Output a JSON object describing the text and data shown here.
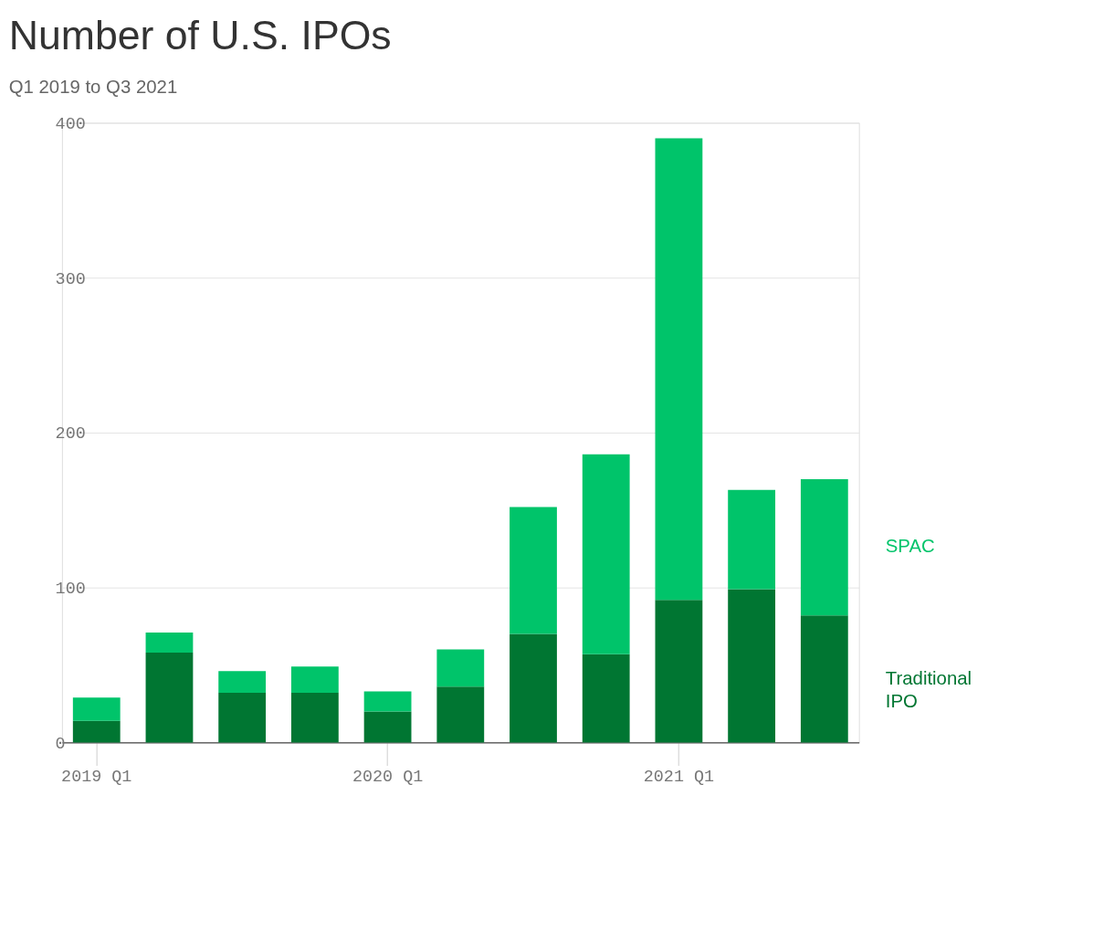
{
  "chart_data": {
    "type": "bar",
    "title": "Number of U.S. IPOs",
    "subtitle": "Q1 2019 to Q3 2021",
    "categories": [
      "2019 Q1",
      null,
      null,
      null,
      "2020 Q1",
      null,
      null,
      null,
      "2021 Q1",
      null,
      null
    ],
    "stacked": true,
    "series": [
      {
        "name": "Traditional IPO",
        "color": "#007632",
        "values": [
          14,
          58,
          32,
          32,
          20,
          36,
          70,
          57,
          92,
          99,
          82
        ]
      },
      {
        "name": "SPAC",
        "color": "#00c46a",
        "values": [
          15,
          13,
          14,
          17,
          13,
          24,
          82,
          129,
          298,
          64,
          88
        ]
      }
    ],
    "ylim": [
      0,
      400
    ],
    "yticks": [
      0,
      100,
      200,
      300,
      400
    ],
    "grid": "y",
    "legend": "right"
  }
}
